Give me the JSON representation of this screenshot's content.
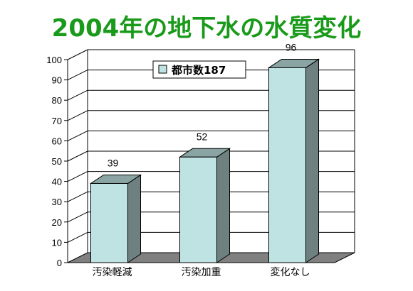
{
  "title": "2004年の地下水の水質変化",
  "colors": {
    "title": "#1a9a1a",
    "bar_front": "#bfe3e3",
    "bar_side": "#6e8080",
    "bar_top": "#8aa4a4",
    "floor": "#808080",
    "grid": "#000000"
  },
  "chart_data": {
    "type": "bar",
    "title": "2004年の地下水の水質変化",
    "categories": [
      "汚染軽減",
      "汚染加重",
      "変化なし"
    ],
    "series": [
      {
        "name": "都市数187",
        "values": [
          39,
          52,
          96
        ]
      }
    ],
    "ylim": [
      0,
      100
    ],
    "yticks": [
      0,
      10,
      20,
      30,
      40,
      50,
      60,
      70,
      80,
      90,
      100
    ],
    "grid": true,
    "three_d": true,
    "legend": "top-center"
  }
}
